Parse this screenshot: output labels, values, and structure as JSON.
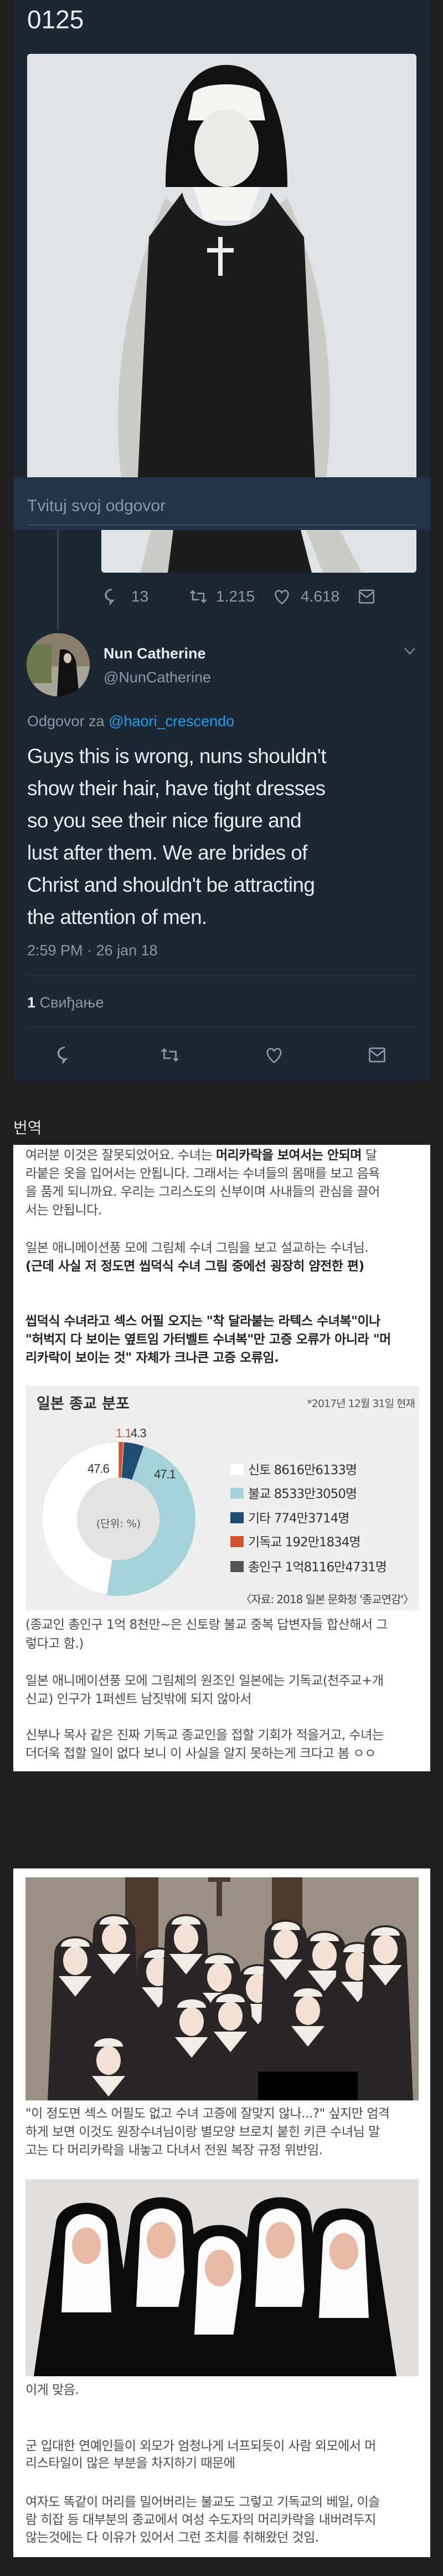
{
  "tweet_header": {
    "title": "0125"
  },
  "reply_box": {
    "placeholder": "Tvituj svoj odgovor"
  },
  "parent_tweet_stats": {
    "replies": "13",
    "retweets": "1.215",
    "likes": "4.618"
  },
  "tweet": {
    "author_name": "Nun Catherine",
    "author_handle": "@NunCatherine",
    "reply_prefix": "Odgovor za",
    "reply_to": "@haori_crescendo",
    "text_lines": [
      "Guys this is wrong, nuns shouldn't",
      "show their hair, have tight dresses",
      "so you see their nice figure and",
      "lust after them. We are brides of",
      "Christ and shouldn't be attracting",
      "the attention of men."
    ],
    "timestamp": "2:59 PM · 26 jan 18",
    "likes_count": "1",
    "likes_label": "Свиђање"
  },
  "colors": {
    "tweet_bg": "#1c2733",
    "page_bg": "#202020",
    "link": "#1da1f2",
    "muted": "#8899a6"
  },
  "translation": {
    "heading": "번역",
    "p1": {
      "l1_pre": "여러분 이것은 잘못되었어요. 수녀는 ",
      "l1_bold": "머리카락을 보여서는 안되며",
      "l1_post": " 달",
      "l2": "라붙은 옷을 입어서는 안됩니다. 그래서는 수녀들의 몸매를 보고 음욕",
      "l3": "을 품게 되니까요. 우리는 그리스도의 신부이며 사내들의 관심을 끌어",
      "l4": "서는 안됩니다."
    },
    "p2": {
      "l1": "일본 애니메이션풍 모에 그림체 수녀 그림을 보고 설교하는 수녀님.",
      "l2": "(근데 사실 저 정도면 씹덕식 수녀 그림 중에선 굉장히 얌전한 편)"
    },
    "p3": {
      "l1": "씹덕식 수녀라고 섹스 어필 오지는 \"착 달라붙는 라텍스 수녀복\"이나",
      "l2": "\"허벅지 다 보이는 옆트임 가터벨트 수녀복\"만 고증 오류가 아니라 \"머",
      "l3": "리카락이 보이는 것\" 자체가 크나큰 고증 오류임."
    },
    "p4": {
      "l1": "(종교인 총인구 1억 8천만~은 신토랑 불교 중복 답변자들 합산해서 그",
      "l2": "렇다고 함.)"
    },
    "p5": {
      "l1": "일본 애니메이션풍 모에 그림체의 원조인 일본에는 기독교(천주교+개",
      "l2": "신교) 인구가 1퍼센트 남짓밖에 되지 않아서"
    },
    "p6": {
      "l1": "신부나 목사 같은 진짜 기독교 종교인을 접할 기회가 적을거고, 수녀는",
      "l2": "더더욱 접할 일이 없다 보니 이 사실을 알지 못하는게 크다고 봄 ㅇㅇ"
    }
  },
  "chart_data": {
    "type": "pie",
    "style": "donut",
    "title": "일본 종교 분포",
    "note": "*2017년 12월 31일 현재",
    "center_label": "(단위: %)",
    "source": "〈자료: 2018 일본 문화청 '종교연감'〉",
    "slices": [
      {
        "name": "기독교",
        "value": 1.1,
        "label": "1.1",
        "color": "#d4532f",
        "legend": "기독교 192만1834명"
      },
      {
        "name": "기타",
        "value": 4.3,
        "label": "4.3",
        "color": "#1f4d74",
        "legend": "기타 774만3714명"
      },
      {
        "name": "불교",
        "value": 47.1,
        "label": "47.1",
        "color": "#a3d2d8",
        "legend": "불교 8533만3050명"
      },
      {
        "name": "신토",
        "value": 47.6,
        "label": "47.6",
        "color": "#ffffff",
        "legend": "신토 8616만6133명"
      }
    ],
    "legend_order": [
      "신토",
      "불교",
      "기타",
      "기독교"
    ],
    "total": {
      "legend": "총인구 1억8116만4731명",
      "color": "#555555"
    },
    "legend_placement": "right"
  },
  "section2": {
    "p1": {
      "l1": "\"이 정도면 섹스 어필도 없고 수녀 고증에 잘맞지 않나...?\" 싶지만 엄격",
      "l2": "하게 보면 이것도 원장수녀님이랑 별모양 브로치 붙힌 키큰 수녀님 말",
      "l3": "고는 다 머리카락을 내놓고 다녀서 전원 복장 규정 위반임."
    },
    "p2": "이게 맞음.",
    "p3": {
      "l1": "군 입대한 연예인들이 외모가 엄청나게 너프되듯이 사람 외모에서 머",
      "l2": "리스타일이 많은 부분을 차지하기 때문에"
    },
    "p4": {
      "l1": "여자도 똑같이 머리를 밀어버리는 불교도 그렇고 기독교의 베일, 이슬",
      "l2": "람 히잡 등 대부분의 종교에서 여성 수도자의 머리카락을 내버려두지",
      "l3": "않는것에는 다 이유가 있어서 그런 조치를 취해왔던 것임."
    }
  }
}
